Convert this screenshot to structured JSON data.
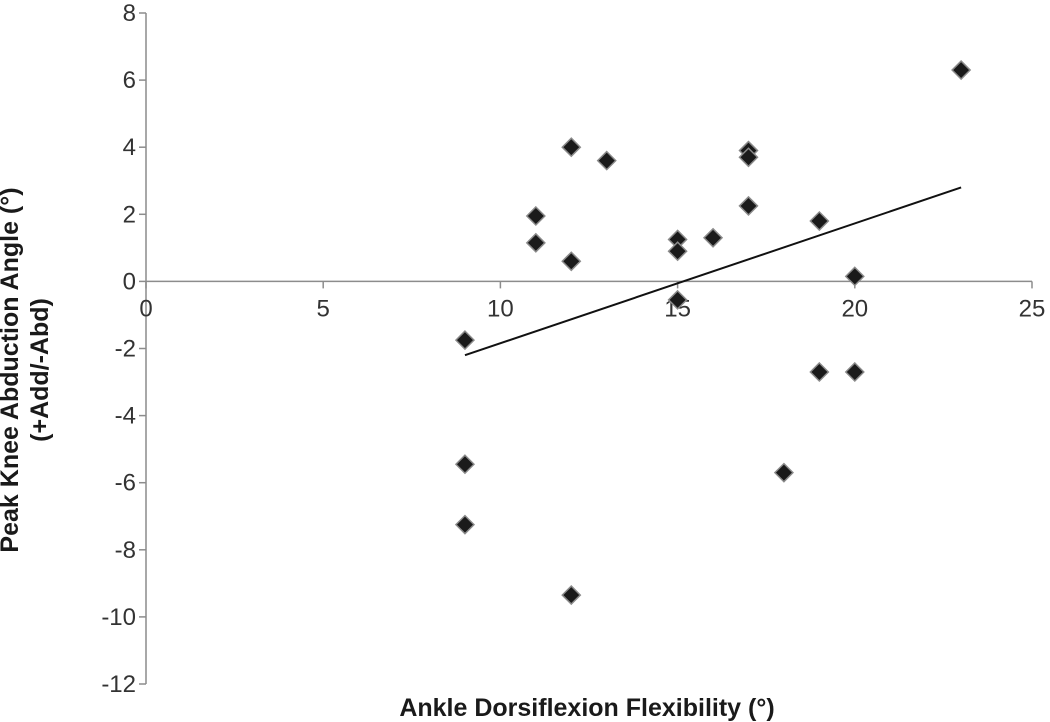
{
  "chart_data": {
    "type": "scatter",
    "title": "",
    "xlabel": "Ankle Dorsiflexion Flexibility (°)",
    "ylabel_line1": "Peak  Knee Abduction Angle (°)",
    "ylabel_line2": "(+Add/-Abd)",
    "xlim": [
      0,
      25
    ],
    "ylim": [
      -12,
      8
    ],
    "x_ticks": [
      0,
      5,
      10,
      15,
      20,
      25
    ],
    "y_ticks": [
      8,
      6,
      4,
      2,
      0,
      -2,
      -4,
      -6,
      -8,
      -10,
      -12
    ],
    "grid": false,
    "marker": "diamond",
    "marker_color": "#1a1a1a",
    "points": [
      {
        "x": 9,
        "y": -1.75
      },
      {
        "x": 9,
        "y": -5.45
      },
      {
        "x": 9,
        "y": -7.25
      },
      {
        "x": 11,
        "y": 1.95
      },
      {
        "x": 11,
        "y": 1.15
      },
      {
        "x": 12,
        "y": 4.0
      },
      {
        "x": 12,
        "y": 0.6
      },
      {
        "x": 12,
        "y": -9.35
      },
      {
        "x": 13,
        "y": 3.6
      },
      {
        "x": 15,
        "y": 1.25
      },
      {
        "x": 15,
        "y": 0.9
      },
      {
        "x": 15,
        "y": -0.55
      },
      {
        "x": 16,
        "y": 1.3
      },
      {
        "x": 17,
        "y": 3.9
      },
      {
        "x": 17,
        "y": 3.7
      },
      {
        "x": 17,
        "y": 2.25
      },
      {
        "x": 18,
        "y": -5.7
      },
      {
        "x": 19,
        "y": 1.8
      },
      {
        "x": 19,
        "y": -2.7
      },
      {
        "x": 20,
        "y": 0.15
      },
      {
        "x": 20,
        "y": -2.7
      },
      {
        "x": 23,
        "y": 6.3
      }
    ],
    "trendline": {
      "x": [
        9,
        23
      ],
      "y": [
        -2.2,
        2.8
      ]
    }
  }
}
